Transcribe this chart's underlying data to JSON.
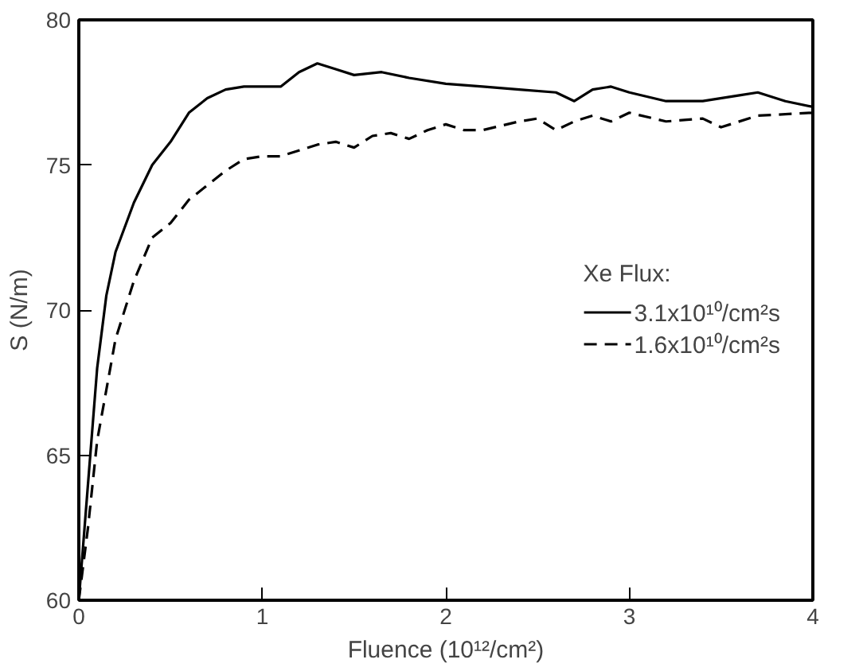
{
  "chart_data": {
    "type": "line",
    "xlabel": "Fluence (10¹²/cm²)",
    "ylabel": "S (N/m)",
    "legend_title": "Xe Flux:",
    "legend": "right",
    "grid": false,
    "xlim": [
      0,
      4
    ],
    "ylim": [
      60,
      80
    ],
    "xticks": [
      0,
      1,
      2,
      3,
      4
    ],
    "yticks": [
      60,
      65,
      70,
      75,
      80
    ],
    "series": [
      {
        "name": "3.1x10¹⁰/cm²s",
        "color": "#000000",
        "line_style": "solid",
        "x": [
          0,
          0.05,
          0.1,
          0.15,
          0.2,
          0.3,
          0.4,
          0.5,
          0.6,
          0.7,
          0.8,
          0.9,
          1.0,
          1.1,
          1.2,
          1.3,
          1.4,
          1.5,
          1.65,
          1.8,
          2.0,
          2.2,
          2.4,
          2.6,
          2.7,
          2.8,
          2.9,
          3.0,
          3.2,
          3.4,
          3.6,
          3.7,
          3.85,
          4.0
        ],
        "values": [
          60,
          64,
          68,
          70.5,
          72,
          73.7,
          75,
          75.8,
          76.8,
          77.3,
          77.6,
          77.7,
          77.7,
          77.7,
          78.2,
          78.5,
          78.3,
          78.1,
          78.2,
          78.0,
          77.8,
          77.7,
          77.6,
          77.5,
          77.2,
          77.6,
          77.7,
          77.5,
          77.2,
          77.2,
          77.4,
          77.5,
          77.2,
          77.0
        ]
      },
      {
        "name": "1.6x10¹⁰/cm²s",
        "color": "#000000",
        "line_style": "dashed",
        "x": [
          0,
          0.05,
          0.1,
          0.2,
          0.3,
          0.4,
          0.5,
          0.6,
          0.7,
          0.8,
          0.9,
          1.0,
          1.1,
          1.2,
          1.3,
          1.4,
          1.5,
          1.6,
          1.7,
          1.8,
          1.9,
          2.0,
          2.1,
          2.2,
          2.4,
          2.5,
          2.6,
          2.7,
          2.8,
          2.9,
          3.0,
          3.2,
          3.4,
          3.5,
          3.7,
          4.0
        ],
        "values": [
          60,
          62.5,
          65.5,
          69,
          71,
          72.5,
          73,
          73.8,
          74.3,
          74.8,
          75.2,
          75.3,
          75.3,
          75.5,
          75.7,
          75.8,
          75.6,
          76.0,
          76.1,
          75.9,
          76.2,
          76.4,
          76.2,
          76.2,
          76.5,
          76.6,
          76.2,
          76.5,
          76.7,
          76.5,
          76.8,
          76.5,
          76.6,
          76.3,
          76.7,
          76.8
        ]
      }
    ]
  }
}
